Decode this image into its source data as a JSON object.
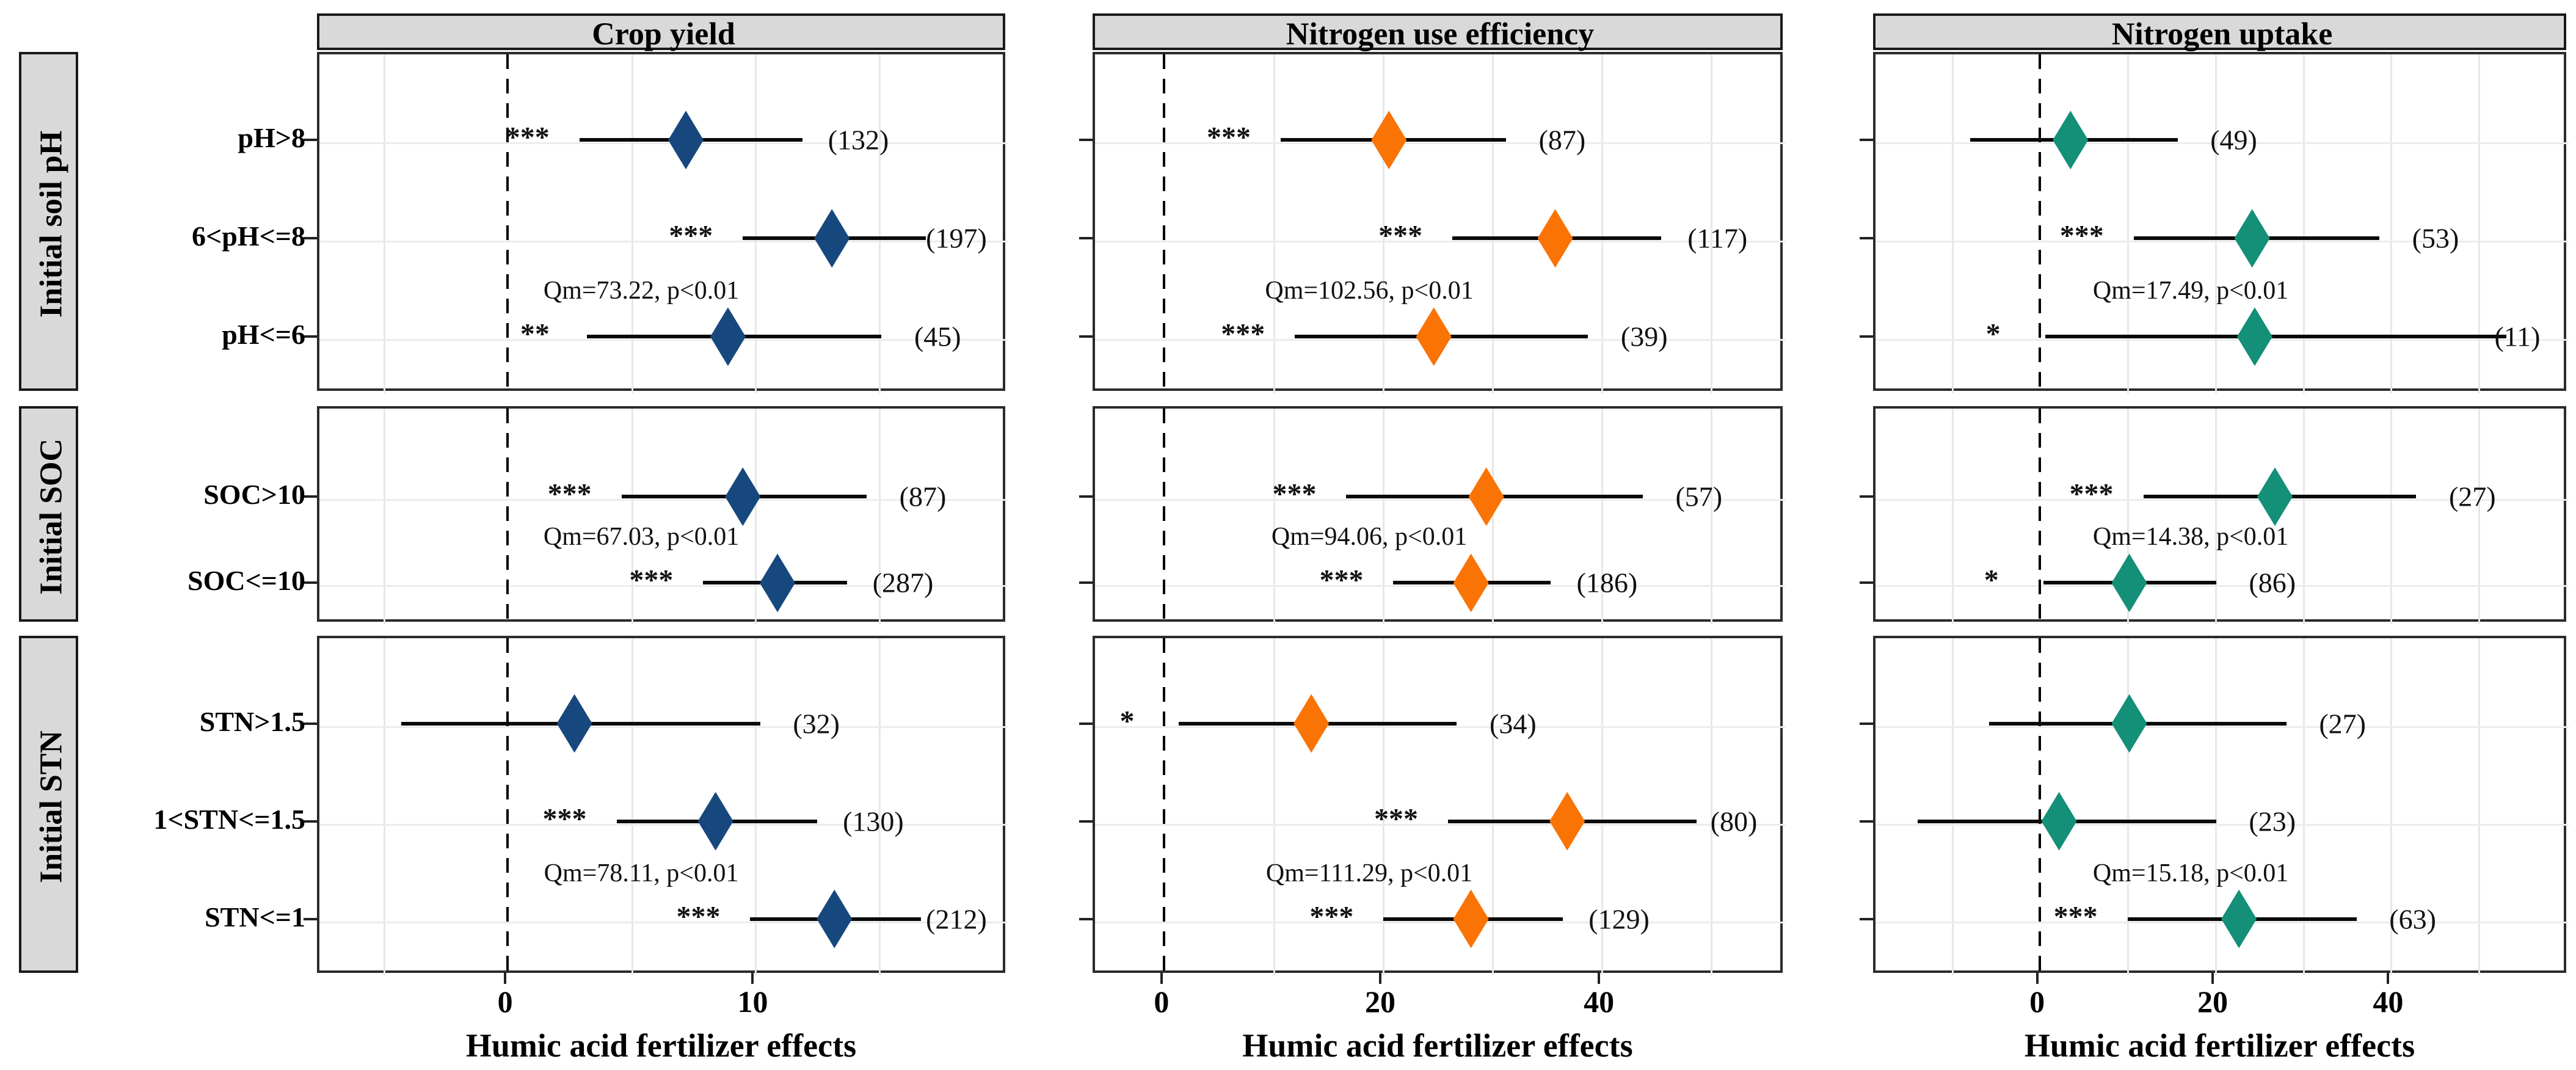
{
  "colors": {
    "strip_bg": "#d9d9d9",
    "panel_border": "#2b2b2b",
    "ci_line": "#0a0a0a",
    "grid": "#e7e7e7",
    "crop_yield_marker": "#17487d",
    "nue_marker": "#fa7305",
    "uptake_marker": "#148f78"
  },
  "chart_data": {
    "type": "scatter",
    "subtype": "forest-plot-meta-analysis",
    "x_axis_title": "Humic acid fertilizer effects",
    "legend_position": "none",
    "grid": "on",
    "outcomes": [
      {
        "title": "Crop yield",
        "color": "#17487d",
        "x_range": [
          -7.6,
          20.2
        ],
        "x_ticks": [
          0,
          10
        ],
        "grid_step": 5,
        "qm_x": 5.5
      },
      {
        "title": "Nitrogen use efficiency",
        "color": "#fa7305",
        "x_range": [
          -6.3,
          56.8
        ],
        "x_ticks": [
          0,
          20,
          40
        ],
        "grid_step": 10,
        "qm_x": 19
      },
      {
        "title": "Nitrogen uptake",
        "color": "#148f78",
        "x_range": [
          -18.7,
          60.3
        ],
        "x_ticks": [
          0,
          20,
          40
        ],
        "grid_step": 10,
        "qm_x": 17.5
      }
    ],
    "groups": [
      {
        "facet": "Initial soil pH",
        "qm": [
          "Qm=73.22, p<0.01",
          "Qm=102.56, p<0.01",
          "Qm=17.49, p<0.01"
        ],
        "rows": [
          {
            "label": "pH>8",
            "effects": [
              {
                "mean": 7.3,
                "lo": 3.0,
                "hi": 12.0,
                "sig": "***",
                "n": 132
              },
              {
                "mean": 20.8,
                "lo": 10.9,
                "hi": 31.5,
                "sig": "***",
                "n": 87
              },
              {
                "mean": 3.8,
                "lo": -7.6,
                "hi": 16.0,
                "sig": "",
                "n": 49
              }
            ]
          },
          {
            "label": "6<pH<=8",
            "effects": [
              {
                "mean": 13.2,
                "lo": 9.6,
                "hi": 17.0,
                "sig": "***",
                "n": 197
              },
              {
                "mean": 36.0,
                "lo": 26.6,
                "hi": 45.7,
                "sig": "***",
                "n": 117
              },
              {
                "mean": 24.5,
                "lo": 11.0,
                "hi": 39.0,
                "sig": "***",
                "n": 53
              }
            ]
          },
          {
            "label": "pH<=6",
            "effects": [
              {
                "mean": 9.0,
                "lo": 3.3,
                "hi": 15.2,
                "sig": "**",
                "n": 45
              },
              {
                "mean": 24.9,
                "lo": 12.2,
                "hi": 39.0,
                "sig": "***",
                "n": 39
              },
              {
                "mean": 24.8,
                "lo": 0.9,
                "hi": 53.5,
                "sig": "*",
                "n": 11
              }
            ]
          }
        ]
      },
      {
        "facet": "Initial SOC",
        "qm": [
          "Qm=67.03, p<0.01",
          "Qm=94.06, p<0.01",
          "Qm=14.38, p<0.01"
        ],
        "rows": [
          {
            "label": "SOC>10",
            "effects": [
              {
                "mean": 9.6,
                "lo": 4.7,
                "hi": 14.6,
                "sig": "***",
                "n": 87
              },
              {
                "mean": 29.7,
                "lo": 16.9,
                "hi": 44.0,
                "sig": "***",
                "n": 57
              },
              {
                "mean": 27.1,
                "lo": 12.1,
                "hi": 43.2,
                "sig": "***",
                "n": 27
              }
            ]
          },
          {
            "label": "SOC<=10",
            "effects": [
              {
                "mean": 11.0,
                "lo": 8.0,
                "hi": 13.8,
                "sig": "***",
                "n": 287
              },
              {
                "mean": 28.3,
                "lo": 21.2,
                "hi": 35.6,
                "sig": "***",
                "n": 186
              },
              {
                "mean": 10.5,
                "lo": 0.7,
                "hi": 20.4,
                "sig": "*",
                "n": 86
              }
            ]
          }
        ]
      },
      {
        "facet": "Initial STN",
        "qm": [
          "Qm=78.11, p<0.01",
          "Qm=111.29, p<0.01",
          "Qm=15.18, p<0.01"
        ],
        "rows": [
          {
            "label": "STN>1.5",
            "effects": [
              {
                "mean": 2.8,
                "lo": -4.2,
                "hi": 10.3,
                "sig": "",
                "n": 32
              },
              {
                "mean": 13.7,
                "lo": 1.6,
                "hi": 27.0,
                "sig": "*",
                "n": 34
              },
              {
                "mean": 10.5,
                "lo": -5.5,
                "hi": 28.4,
                "sig": "",
                "n": 27
              }
            ]
          },
          {
            "label": "1<STN<=1.5",
            "effects": [
              {
                "mean": 8.5,
                "lo": 4.5,
                "hi": 12.6,
                "sig": "***",
                "n": 130
              },
              {
                "mean": 37.1,
                "lo": 26.2,
                "hi": 48.9,
                "sig": "***",
                "n": 80
              },
              {
                "mean": 2.5,
                "lo": -13.6,
                "hi": 20.4,
                "sig": "",
                "n": 23
              }
            ]
          },
          {
            "label": "STN<=1",
            "effects": [
              {
                "mean": 13.3,
                "lo": 9.9,
                "hi": 16.8,
                "sig": "***",
                "n": 212
              },
              {
                "mean": 28.3,
                "lo": 20.3,
                "hi": 36.7,
                "sig": "***",
                "n": 129
              },
              {
                "mean": 23.0,
                "lo": 10.3,
                "hi": 36.4,
                "sig": "***",
                "n": 63
              }
            ]
          }
        ]
      }
    ]
  }
}
